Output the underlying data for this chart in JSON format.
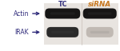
{
  "bg_color": "#ffffff",
  "blot_bg": "#e8e4e0",
  "label_color": "#2e2a7a",
  "tc_color": "#2e2a7a",
  "sirna_color": "#c87820",
  "tc_label": "TC",
  "sirna_label": "siRNA",
  "irak_label": "IRAK",
  "actin_label": "Actin",
  "arrow_color": "#2e2a7a",
  "irak_tc_dark": "#1a1a1a",
  "irak_sirna_light": "#b0a8a0",
  "actin_tc_dark": "#0a0a0a",
  "actin_sirna_dark": "#0a0a0a",
  "label_fontsize": 5.5,
  "header_fontsize": 5.8
}
